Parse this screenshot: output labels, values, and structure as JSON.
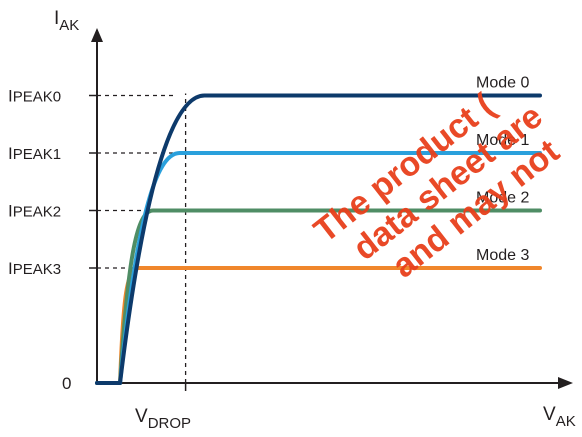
{
  "chart_data": {
    "type": "line",
    "title": "",
    "xlabel": {
      "main": "V",
      "sub": "AK"
    },
    "ylabel": {
      "main": "I",
      "sub": "AK"
    },
    "x_marker": {
      "main": "V",
      "sub": "DROP",
      "value": 1.0
    },
    "y_zero_label": "0",
    "y_levels": [
      {
        "main": "I",
        "sub": "PEAK0",
        "value": 1.0
      },
      {
        "main": "I",
        "sub": "PEAK1",
        "value": 0.8
      },
      {
        "main": "I",
        "sub": "PEAK2",
        "value": 0.6
      },
      {
        "main": "I",
        "sub": "PEAK3",
        "value": 0.4
      }
    ],
    "xlim": [
      0,
      5.0
    ],
    "ylim": [
      0,
      1.2
    ],
    "grid": false,
    "series": [
      {
        "name": "Mode 0",
        "color": "#0d3a6b",
        "level": 1.0,
        "onset": 0.26,
        "knee": 1.1
      },
      {
        "name": "Mode 1",
        "color": "#2aa0dc",
        "level": 0.8,
        "onset": 0.26,
        "knee": 0.82
      },
      {
        "name": "Mode 2",
        "color": "#4f8d65",
        "level": 0.6,
        "onset": 0.26,
        "knee": 0.52
      },
      {
        "name": "Mode 3",
        "color": "#f0862b",
        "level": 0.4,
        "onset": 0.26,
        "knee": 0.36
      }
    ]
  },
  "watermark": {
    "lines": [
      "The product described on this",
      "data sheet are",
      "and may not be"
    ],
    "color": "#e8401c"
  }
}
